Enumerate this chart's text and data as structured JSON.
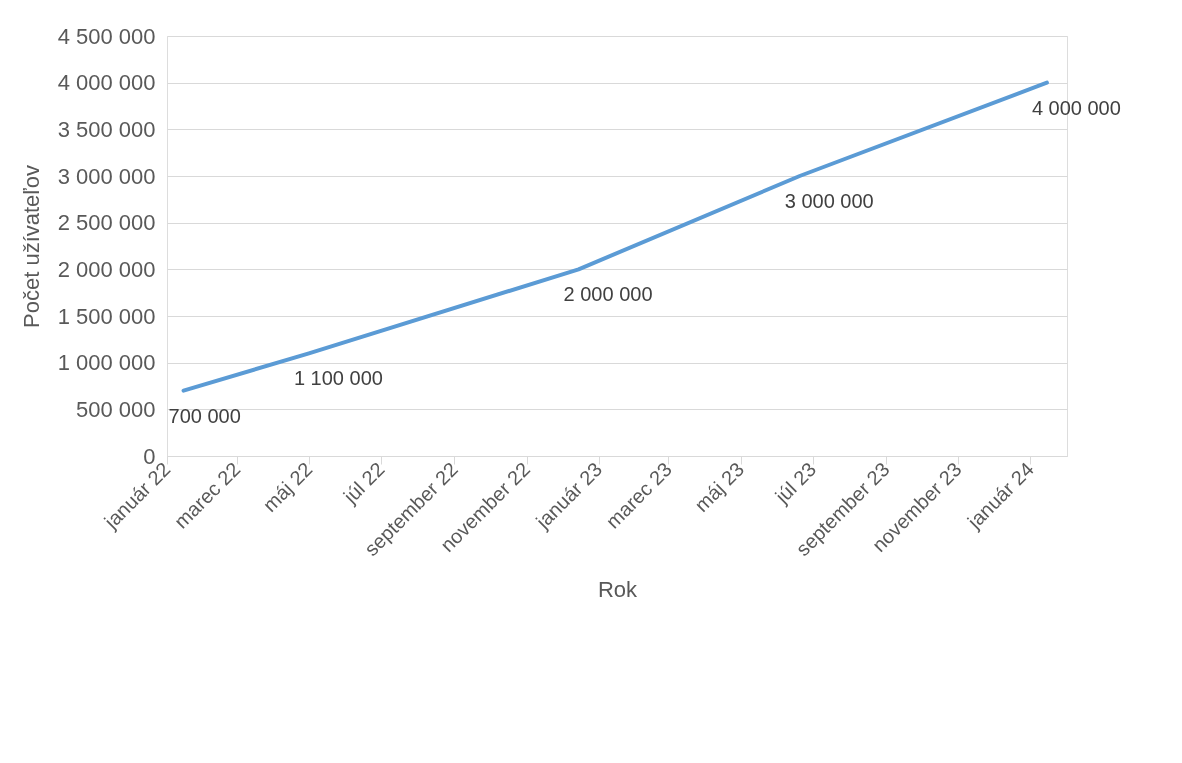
{
  "chart_data": {
    "type": "line",
    "xlabel": "Rok",
    "ylabel": "Počet užívateľov",
    "x": [
      "2022-01-15",
      "2022-05-01",
      "2022-12-15",
      "2023-06-20",
      "2024-01-15"
    ],
    "series": [
      {
        "color": "#5b9bd5",
        "values": [
          700000,
          1100000,
          2000000,
          3000000,
          4000000
        ]
      }
    ],
    "data_labels": true,
    "xlim": [
      "2022-01-01",
      "2024-02-01"
    ],
    "xticks": [
      {
        "value": "2022-01-01",
        "label": "január 22"
      },
      {
        "value": "2022-03-01",
        "label": "marec 22"
      },
      {
        "value": "2022-05-01",
        "label": "máj 22"
      },
      {
        "value": "2022-07-01",
        "label": "júl 22"
      },
      {
        "value": "2022-09-01",
        "label": "september 22"
      },
      {
        "value": "2022-11-01",
        "label": "november 22"
      },
      {
        "value": "2023-01-01",
        "label": "január 23"
      },
      {
        "value": "2023-03-01",
        "label": "marec 23"
      },
      {
        "value": "2023-05-01",
        "label": "máj 23"
      },
      {
        "value": "2023-07-01",
        "label": "júl 23"
      },
      {
        "value": "2023-09-01",
        "label": "september 23"
      },
      {
        "value": "2023-11-01",
        "label": "november 23"
      },
      {
        "value": "2024-01-01",
        "label": "január 24"
      }
    ],
    "ylim": [
      0,
      4500000
    ],
    "yticks": [
      0,
      {
        "value": 500000,
        "label": "500 000"
      },
      {
        "value": 1000000,
        "label": "1 000 000"
      },
      {
        "value": 1500000,
        "label": "1 500 000"
      },
      {
        "value": 2000000,
        "label": "2 000 000"
      },
      {
        "value": 2500000,
        "label": "2 500 000"
      },
      {
        "value": 3000000,
        "label": "3 000 000"
      },
      {
        "value": 3500000,
        "label": "3 500 000"
      },
      {
        "value": 4000000,
        "label": "4 000 000"
      },
      {
        "value": 4500000,
        "label": "4 500 000"
      }
    ],
    "grid": "y",
    "marker": "none",
    "line_style": "solid"
  }
}
